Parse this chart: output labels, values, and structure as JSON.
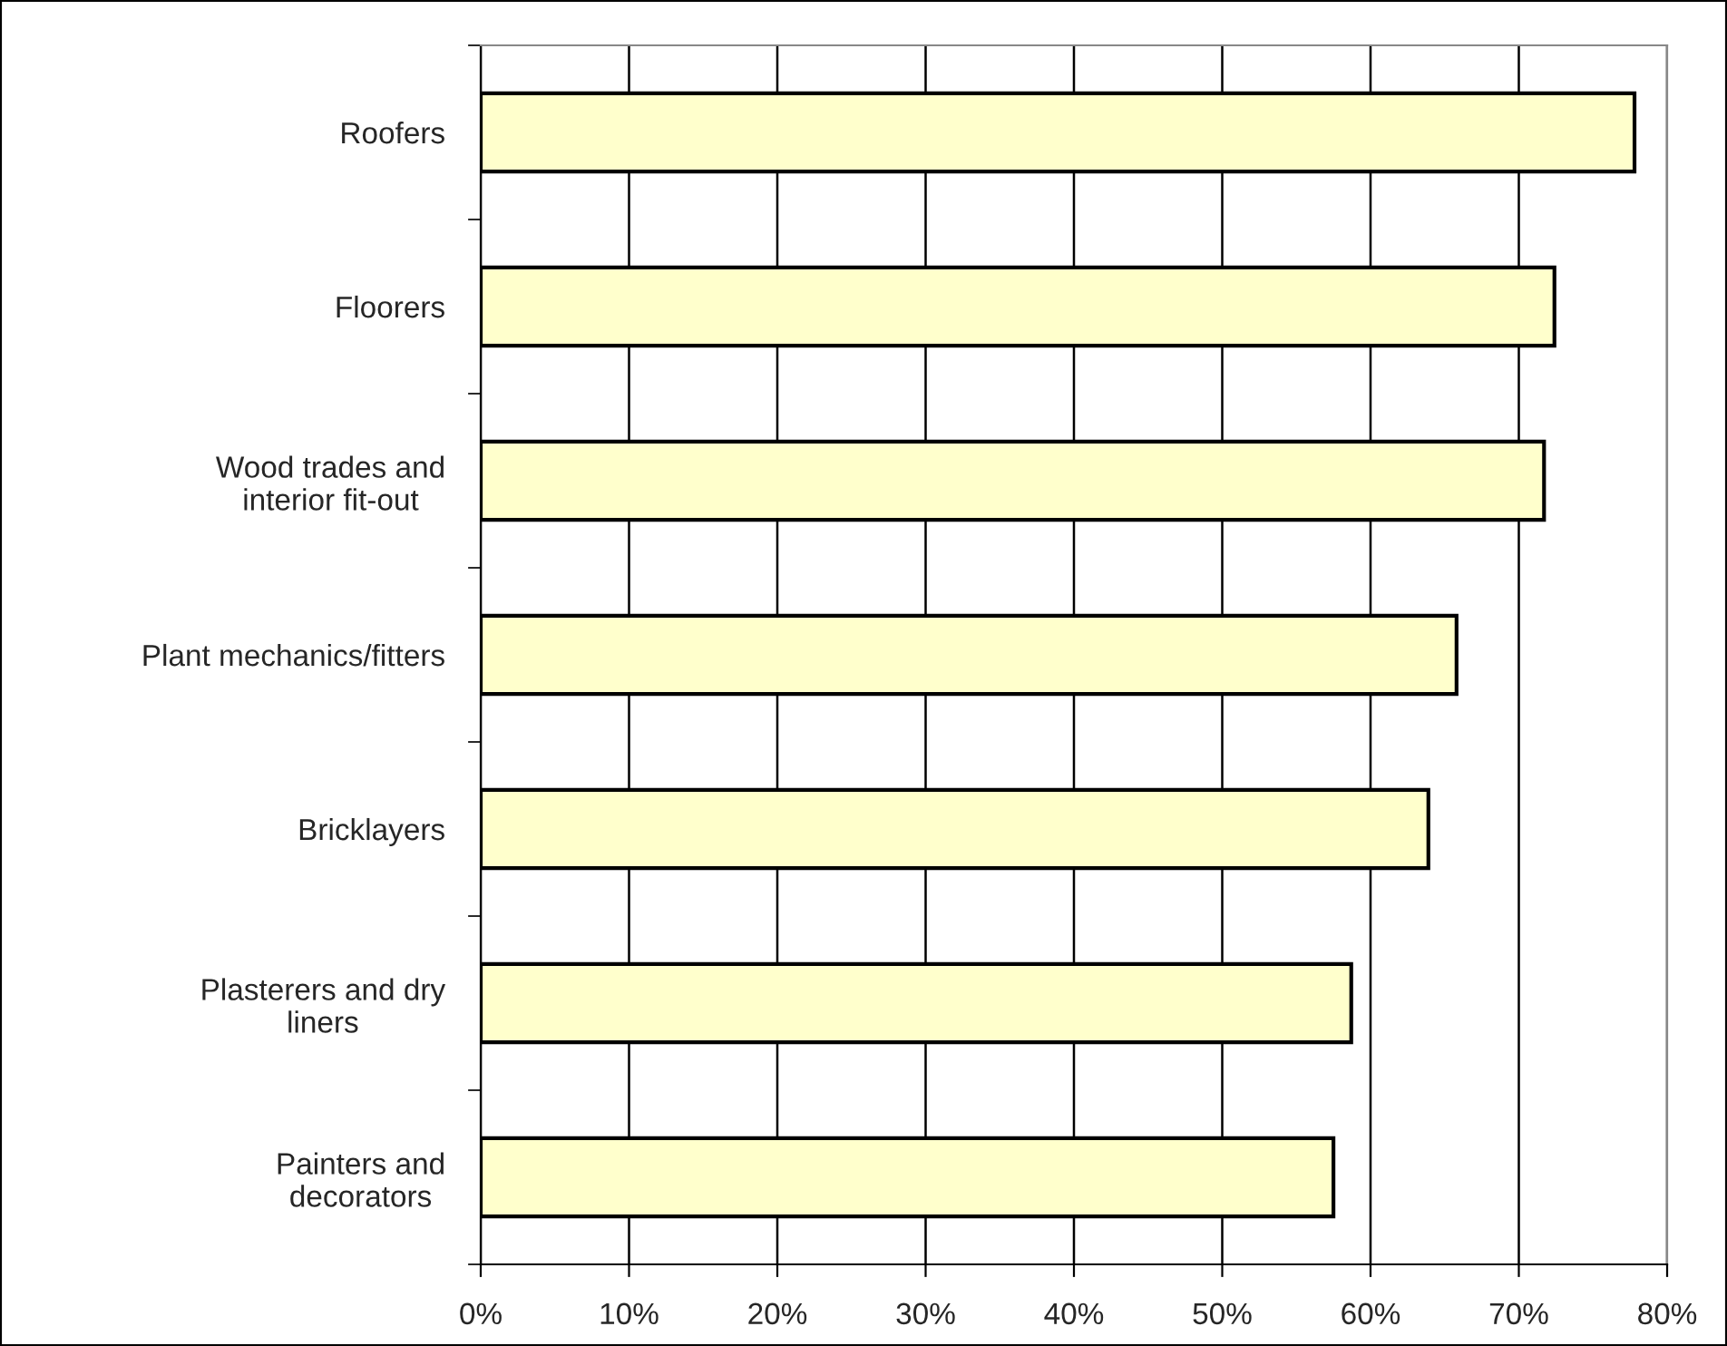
{
  "chart_data": {
    "type": "bar",
    "orientation": "horizontal",
    "categories": [
      "Roofers",
      "Floorers",
      "Wood trades and\ninterior fit-out",
      "Plant mechanics/fitters",
      "Bricklayers",
      "Plasterers and dry\nliners",
      "Painters and\ndecorators"
    ],
    "values": [
      77.8,
      72.4,
      71.7,
      65.8,
      63.9,
      58.7,
      57.5
    ],
    "color": "#ffffcc",
    "xlim": [
      0,
      80
    ],
    "xticks": [
      {
        "value": 0,
        "label": "0%"
      },
      {
        "value": 10,
        "label": "10%"
      },
      {
        "value": 20,
        "label": "20%"
      },
      {
        "value": 30,
        "label": "30%"
      },
      {
        "value": 40,
        "label": "40%"
      },
      {
        "value": 50,
        "label": "50%"
      },
      {
        "value": 60,
        "label": "60%"
      },
      {
        "value": 70,
        "label": "70%"
      },
      {
        "value": 80,
        "label": "80%"
      }
    ],
    "grid": "x"
  }
}
